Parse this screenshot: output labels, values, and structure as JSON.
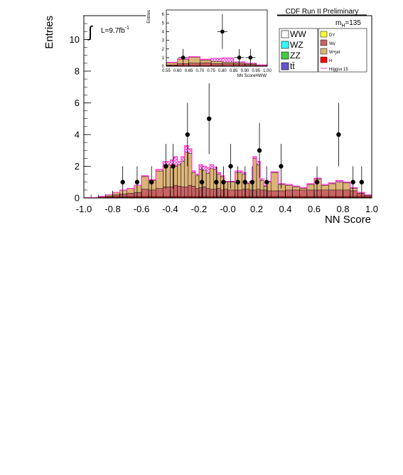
{
  "colors": {
    "dy": "#ffff33",
    "wgamma": "#c86464",
    "wjet": "#dcb478",
    "higgs": "#ff0000",
    "higgs_x15": "#ff33cc",
    "ww": "#ffffff",
    "wz": "#33ffff",
    "zz": "#44cc44",
    "ttbar": "#6655cc",
    "data": "#000000",
    "dark_base": "#801818"
  },
  "chart_data": [
    {
      "type": "histogram-stack",
      "title": "CDF Run II Preliminary",
      "xlabel": "NN Score",
      "ylabel": "Entries",
      "xlim": [
        -1.0,
        1.0
      ],
      "ylim": [
        0,
        11.5
      ],
      "xticks": [
        -1.0,
        -0.8,
        -0.6,
        -0.4,
        -0.2,
        -0.0,
        0.2,
        0.4,
        0.6,
        0.8,
        1.0
      ],
      "xtick_labels": [
        "-1.0",
        "-0.8",
        "-0.6",
        "-0.4",
        "-0.2",
        "-0.0",
        "0.2",
        "0.4",
        "0.6",
        "0.8",
        "1.0"
      ],
      "yticks": [
        0,
        2,
        4,
        6,
        8,
        10
      ],
      "ytick_labels": [
        "0",
        "2",
        "4",
        "6",
        "8",
        "10"
      ],
      "grid": false,
      "lumi": "L=9.7fb",
      "lumi_sup": "-1",
      "mass_label": "m",
      "mass_sub": "H",
      "mass_value": "=135",
      "legend_placement": "top-right",
      "legend_left": [
        {
          "label": "WW",
          "color_key": "ww"
        },
        {
          "label": "WZ",
          "color_key": "wz"
        },
        {
          "label": "ZZ",
          "color_key": "zz"
        },
        {
          "label": "tt̄",
          "color_key": "ttbar"
        }
      ],
      "legend_right": [
        {
          "label": "DY",
          "color_key": "dy"
        },
        {
          "label": "Wγ",
          "color_key": "wgamma"
        },
        {
          "label": "W+jet",
          "color_key": "wjet"
        },
        {
          "label": "H",
          "color_key": "higgs"
        },
        {
          "label": "Higgsx 15",
          "color_key": "higgs_x15"
        }
      ],
      "bins": [
        -1.0,
        -0.95,
        -0.9,
        -0.85,
        -0.8,
        -0.75,
        -0.7,
        -0.65,
        -0.6,
        -0.55,
        -0.5,
        -0.45,
        -0.4,
        -0.375,
        -0.35,
        -0.325,
        -0.3,
        -0.275,
        -0.25,
        -0.225,
        -0.2,
        -0.175,
        -0.15,
        -0.125,
        -0.1,
        -0.075,
        -0.05,
        -0.025,
        0.0,
        0.05,
        0.1,
        0.125,
        0.15,
        0.175,
        0.2,
        0.225,
        0.25,
        0.275,
        0.3,
        0.35,
        0.4,
        0.45,
        0.5,
        0.55,
        0.6,
        0.65,
        0.7,
        0.75,
        0.8,
        0.85,
        0.9,
        0.95,
        1.0
      ],
      "wgamma_top": [
        0.02,
        0.02,
        0.05,
        0.1,
        0.2,
        0.25,
        0.3,
        0.35,
        0.55,
        0.5,
        0.6,
        0.7,
        0.7,
        0.8,
        0.75,
        0.7,
        0.7,
        0.8,
        0.75,
        0.6,
        0.65,
        0.7,
        0.6,
        0.55,
        0.55,
        0.6,
        0.5,
        0.55,
        0.5,
        0.5,
        0.55,
        0.55,
        0.5,
        0.5,
        0.55,
        0.5,
        0.5,
        0.45,
        0.45,
        0.45,
        0.5,
        0.5,
        0.5,
        0.5,
        0.5,
        0.5,
        0.5,
        0.5,
        0.5,
        0.45,
        0.3,
        0.15
      ],
      "wjet_top": [
        0.02,
        0.02,
        0.1,
        0.2,
        0.35,
        0.5,
        0.6,
        0.8,
        1.35,
        1.1,
        1.7,
        2.1,
        1.9,
        2.0,
        2.1,
        2.3,
        2.9,
        2.8,
        1.6,
        1.4,
        1.8,
        1.75,
        1.55,
        1.85,
        1.8,
        1.5,
        1.35,
        1.0,
        1.0,
        1.6,
        1.5,
        0.9,
        1.0,
        2.5,
        2.1,
        1.1,
        0.75,
        1.0,
        1.6,
        0.85,
        0.8,
        0.7,
        0.6,
        0.85,
        1.2,
        0.8,
        0.9,
        1.0,
        0.95,
        0.6,
        0.35,
        0.2
      ],
      "higgs_x15_top": [
        0.02,
        0.02,
        0.1,
        0.2,
        0.35,
        0.5,
        0.6,
        0.8,
        1.4,
        1.15,
        1.8,
        2.3,
        2.4,
        2.6,
        2.3,
        2.6,
        3.3,
        3.1,
        1.7,
        1.5,
        2.1,
        2.0,
        1.9,
        2.1,
        1.95,
        1.6,
        1.4,
        1.05,
        1.05,
        1.7,
        1.6,
        0.95,
        1.05,
        2.6,
        2.3,
        1.2,
        0.8,
        1.05,
        1.65,
        0.9,
        0.85,
        0.75,
        0.65,
        0.9,
        1.25,
        0.85,
        0.95,
        1.1,
        1.0,
        0.65,
        0.35,
        0.2
      ],
      "data_points": [
        {
          "x": -0.73,
          "y": 1,
          "err": 1.0
        },
        {
          "x": -0.63,
          "y": 1,
          "err": 1.0
        },
        {
          "x": -0.53,
          "y": 1,
          "err": 1.0
        },
        {
          "x": -0.43,
          "y": 2,
          "err": 1.414
        },
        {
          "x": -0.38,
          "y": 2,
          "err": 1.414
        },
        {
          "x": -0.28,
          "y": 4,
          "err": 2.0
        },
        {
          "x": -0.18,
          "y": 1,
          "err": 1.0
        },
        {
          "x": -0.13,
          "y": 5,
          "err": 2.236
        },
        {
          "x": -0.08,
          "y": 1,
          "err": 1.0
        },
        {
          "x": -0.03,
          "y": 1,
          "err": 1.0
        },
        {
          "x": 0.02,
          "y": 2,
          "err": 1.414
        },
        {
          "x": 0.07,
          "y": 1,
          "err": 1.0
        },
        {
          "x": 0.12,
          "y": 1,
          "err": 1.0
        },
        {
          "x": 0.17,
          "y": 1,
          "err": 1.0
        },
        {
          "x": 0.22,
          "y": 3,
          "err": 1.732
        },
        {
          "x": 0.27,
          "y": 1,
          "err": 1.0
        },
        {
          "x": 0.37,
          "y": 2,
          "err": 1.414
        },
        {
          "x": 0.62,
          "y": 1,
          "err": 1.0
        },
        {
          "x": 0.77,
          "y": 4,
          "err": 2.0
        },
        {
          "x": 0.87,
          "y": 1,
          "err": 1.0
        },
        {
          "x": 0.93,
          "y": 1,
          "err": 1.0
        }
      ]
    },
    {
      "type": "histogram-stack",
      "title": "",
      "xlabel": "NN ScoreHWW",
      "ylabel": "Entries",
      "xlim": [
        0.55,
        1.0
      ],
      "ylim": [
        0,
        6.5
      ],
      "xticks": [
        0.55,
        0.6,
        0.65,
        0.7,
        0.75,
        0.8,
        0.85,
        0.9,
        0.95,
        1.0
      ],
      "xtick_labels": [
        "0.55",
        "0.60",
        "0.65",
        "0.70",
        "0.75",
        "0.80",
        "0.85",
        "0.90",
        "0.95",
        "1.00"
      ],
      "yticks": [
        0,
        1,
        2,
        3,
        4,
        5,
        6
      ],
      "ytick_labels": [
        "0",
        "1",
        "2",
        "3",
        "4",
        "5",
        "6"
      ],
      "bins": [
        0.55,
        0.6,
        0.65,
        0.7,
        0.75,
        0.8,
        0.85,
        0.9,
        0.95,
        1.0
      ],
      "wgamma_top": [
        0.15,
        0.3,
        0.35,
        0.4,
        0.3,
        0.3,
        0.25,
        0.2,
        0.1
      ],
      "wjet_top": [
        0.4,
        0.8,
        1.05,
        0.7,
        0.55,
        0.45,
        0.4,
        0.3,
        0.15
      ],
      "higgs_x15_top": [
        0.45,
        0.85,
        1.1,
        0.8,
        0.9,
        0.95,
        0.5,
        0.35,
        0.15
      ],
      "data_points": [
        {
          "x": 0.625,
          "y": 1,
          "err": 1.0
        },
        {
          "x": 0.8,
          "y": 4,
          "err": 2.0
        },
        {
          "x": 0.875,
          "y": 1,
          "err": 1.0
        },
        {
          "x": 0.925,
          "y": 1,
          "err": 1.0
        }
      ]
    }
  ]
}
